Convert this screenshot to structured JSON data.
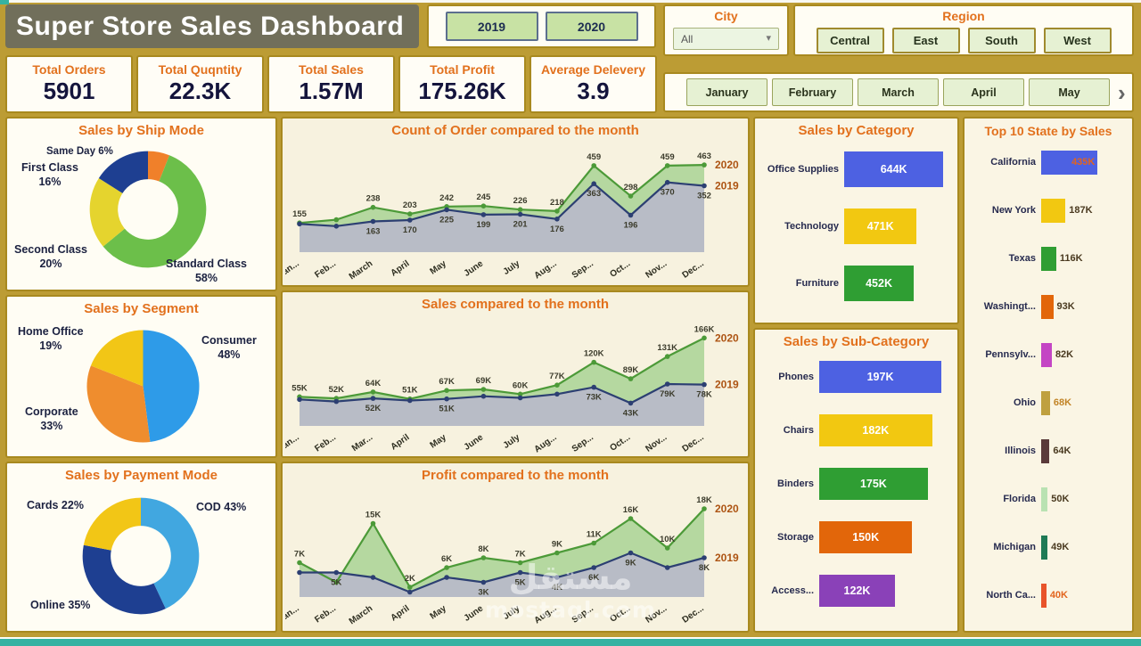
{
  "header": {
    "title": "Super Store Sales Dashboard",
    "years": [
      "2019",
      "2020"
    ],
    "city": {
      "label": "City",
      "value": "All"
    },
    "region": {
      "label": "Region",
      "options": [
        "Central",
        "East",
        "South",
        "West"
      ]
    }
  },
  "kpis": [
    {
      "label": "Total Orders",
      "value": "5901"
    },
    {
      "label": "Total Quqntity",
      "value": "22.3K"
    },
    {
      "label": "Total Sales",
      "value": "1.57M"
    },
    {
      "label": "Total Profit",
      "value": "175.26K"
    },
    {
      "label": "Average Delevery",
      "value": "3.9"
    }
  ],
  "months": [
    "January",
    "February",
    "March",
    "April",
    "May"
  ],
  "icons": {
    "dropdown_arrow": "▾",
    "scroll_right": "›"
  },
  "watermark": {
    "line1": "مستقل",
    "line2": "mostaql.com"
  },
  "chart_data": {
    "ship_mode": {
      "type": "pie",
      "donut": true,
      "title": "Sales by Ship Mode",
      "slices": [
        {
          "name": "Same Day",
          "pct": 6,
          "pct_text": "6%",
          "color": "#f0802a"
        },
        {
          "name": "Standard Class",
          "pct": 58,
          "pct_text": "58%",
          "color": "#6cbf4a"
        },
        {
          "name": "Second Class",
          "pct": 20,
          "pct_text": "20%",
          "color": "#e5d42e"
        },
        {
          "name": "First Class",
          "pct": 16,
          "pct_text": "16%",
          "color": "#1e3f91"
        }
      ]
    },
    "segment": {
      "type": "pie",
      "donut": false,
      "title": "Sales by Segment",
      "slices": [
        {
          "name": "Consumer",
          "pct": 48,
          "pct_text": "48%",
          "color": "#2e9be8"
        },
        {
          "name": "Corporate",
          "pct": 33,
          "pct_text": "33%",
          "color": "#ef8d2e"
        },
        {
          "name": "Home Office",
          "pct": 19,
          "pct_text": "19%",
          "color": "#f2c616"
        }
      ]
    },
    "payment": {
      "type": "pie",
      "donut": true,
      "title": "Sales by Payment Mode",
      "slices": [
        {
          "name": "COD",
          "pct": 43,
          "pct_text": "43%",
          "color": "#41a7e0"
        },
        {
          "name": "Online",
          "pct": 35,
          "pct_text": "35%",
          "color": "#1e3f91"
        },
        {
          "name": "Cards",
          "pct": 22,
          "pct_text": "22%",
          "color": "#f2c616"
        }
      ]
    },
    "orders": {
      "type": "area",
      "title": "Count of Order compared to the month",
      "ymax": 520,
      "categories": [
        "Jan...",
        "Feb...",
        "March",
        "April",
        "May",
        "June",
        "July",
        "Aug...",
        "Sep...",
        "Oct...",
        "Nov...",
        "Dec..."
      ],
      "series": [
        {
          "name": "2020",
          "color": "#4c9a38",
          "fill": "#b5d8a0",
          "values": [
            155,
            172,
            238,
            203,
            242,
            245,
            226,
            218,
            459,
            298,
            459,
            463
          ],
          "labels": [
            "155",
            "",
            "238",
            "203",
            "242",
            "245",
            "226",
            "218",
            "459",
            "298",
            "459",
            "463"
          ]
        },
        {
          "name": "2019",
          "color": "#2c3f72",
          "fill": "#b8bcc6",
          "values": [
            150,
            138,
            163,
            170,
            225,
            199,
            201,
            176,
            363,
            196,
            370,
            352
          ],
          "labels": [
            "",
            "",
            "163",
            "170",
            "225",
            "199",
            "201",
            "176",
            "363",
            "196",
            "370",
            "352"
          ]
        }
      ]
    },
    "sales": {
      "type": "area",
      "title": "Sales compared to the month",
      "ymax": 185,
      "categories": [
        "Jan...",
        "Feb...",
        "Mar...",
        "April",
        "May",
        "June",
        "July",
        "Aug...",
        "Sep...",
        "Oct...",
        "Nov...",
        "Dec..."
      ],
      "series": [
        {
          "name": "2020",
          "color": "#4c9a38",
          "fill": "#b5d8a0",
          "values": [
            55,
            52,
            64,
            51,
            67,
            69,
            60,
            77,
            120,
            89,
            131,
            166
          ],
          "labels": [
            "55K",
            "52K",
            "64K",
            "51K",
            "67K",
            "69K",
            "60K",
            "77K",
            "120K",
            "89K",
            "131K",
            "166K"
          ]
        },
        {
          "name": "2019",
          "color": "#2c3f72",
          "fill": "#b8bcc6",
          "values": [
            50,
            46,
            52,
            48,
            51,
            56,
            53,
            60,
            73,
            43,
            79,
            78
          ],
          "labels": [
            "",
            "",
            "52K",
            "",
            "51K",
            "",
            "",
            "",
            "73K",
            "43K",
            "79K",
            "78K"
          ]
        }
      ]
    },
    "profit": {
      "type": "area",
      "title": "Profit compared to the month",
      "ymax": 20,
      "categories": [
        "Jan...",
        "Feb...",
        "March",
        "April",
        "May",
        "June",
        "July",
        "Aug...",
        "Sep...",
        "Oct...",
        "Nov...",
        "Dec..."
      ],
      "series": [
        {
          "name": "2020",
          "color": "#4c9a38",
          "fill": "#b5d8a0",
          "values": [
            7,
            3,
            15,
            2,
            6,
            8,
            7,
            9,
            11,
            16,
            10,
            18
          ],
          "labels": [
            "7K",
            "",
            "15K",
            "2K",
            "6K",
            "8K",
            "7K",
            "9K",
            "11K",
            "16K",
            "10K",
            "18K"
          ]
        },
        {
          "name": "2019",
          "color": "#2c3f72",
          "fill": "#b8bcc6",
          "values": [
            5,
            5,
            4,
            1,
            4,
            3,
            5,
            4,
            6,
            9,
            6,
            8
          ],
          "labels": [
            "",
            "5K",
            "",
            "",
            "",
            "3K",
            "5K",
            "4K",
            "6K",
            "9K",
            "",
            "8K"
          ]
        }
      ]
    },
    "category": {
      "type": "bar",
      "title": "Sales by Category",
      "max": 644,
      "fill_factor": 92,
      "value_mode": "inside",
      "bars": [
        {
          "label": "Office Supplies",
          "value": 644,
          "text": "644K",
          "color": "#4d61e2"
        },
        {
          "label": "Technology",
          "value": 471,
          "text": "471K",
          "color": "#f2c811"
        },
        {
          "label": "Furniture",
          "value": 452,
          "text": "452K",
          "color": "#2f9e33"
        }
      ]
    },
    "subcategory": {
      "type": "bar",
      "title": "Sales by Sub-Category",
      "max": 197,
      "fill_factor": 92,
      "value_mode": "inside",
      "bars": [
        {
          "label": "Phones",
          "value": 197,
          "text": "197K",
          "color": "#4d61e2"
        },
        {
          "label": "Chairs",
          "value": 182,
          "text": "182K",
          "color": "#f2c811"
        },
        {
          "label": "Binders",
          "value": 175,
          "text": "175K",
          "color": "#2f9e33"
        },
        {
          "label": "Storage",
          "value": 150,
          "text": "150K",
          "color": "#e2660a"
        },
        {
          "label": "Access...",
          "value": 122,
          "text": "122K",
          "color": "#8a41b8"
        }
      ]
    },
    "states": {
      "type": "bar",
      "title": "Top 10 State by Sales",
      "max": 435,
      "fill_factor": 66,
      "value_mode": "after",
      "bars": [
        {
          "label": "California",
          "value": 435,
          "text": "435K",
          "color": "#4d61e2",
          "value_color": "#e2641d",
          "value_inside": true
        },
        {
          "label": "New York",
          "value": 187,
          "text": "187K",
          "color": "#f2c811",
          "value_color": "#4a3a20"
        },
        {
          "label": "Texas",
          "value": 116,
          "text": "116K",
          "color": "#2f9e33",
          "value_color": "#4a3a20"
        },
        {
          "label": "Washingt...",
          "value": 93,
          "text": "93K",
          "color": "#e2660a",
          "value_color": "#4a3a20"
        },
        {
          "label": "Pennsylv...",
          "value": 82,
          "text": "82K",
          "color": "#c445c4",
          "value_color": "#4a3a20"
        },
        {
          "label": "Ohio",
          "value": 68,
          "text": "68K",
          "color": "#bfa03f",
          "value_color": "#c28427"
        },
        {
          "label": "Illinois",
          "value": 64,
          "text": "64K",
          "color": "#5a3a3a",
          "value_color": "#4a3a20"
        },
        {
          "label": "Florida",
          "value": 50,
          "text": "50K",
          "color": "#b9e2b2",
          "value_color": "#4a3a20"
        },
        {
          "label": "Michigan",
          "value": 49,
          "text": "49K",
          "color": "#1e7a55",
          "value_color": "#4a3a20"
        },
        {
          "label": "North Ca...",
          "value": 40,
          "text": "40K",
          "color": "#e8542a",
          "value_color": "#e2641d"
        }
      ]
    }
  }
}
